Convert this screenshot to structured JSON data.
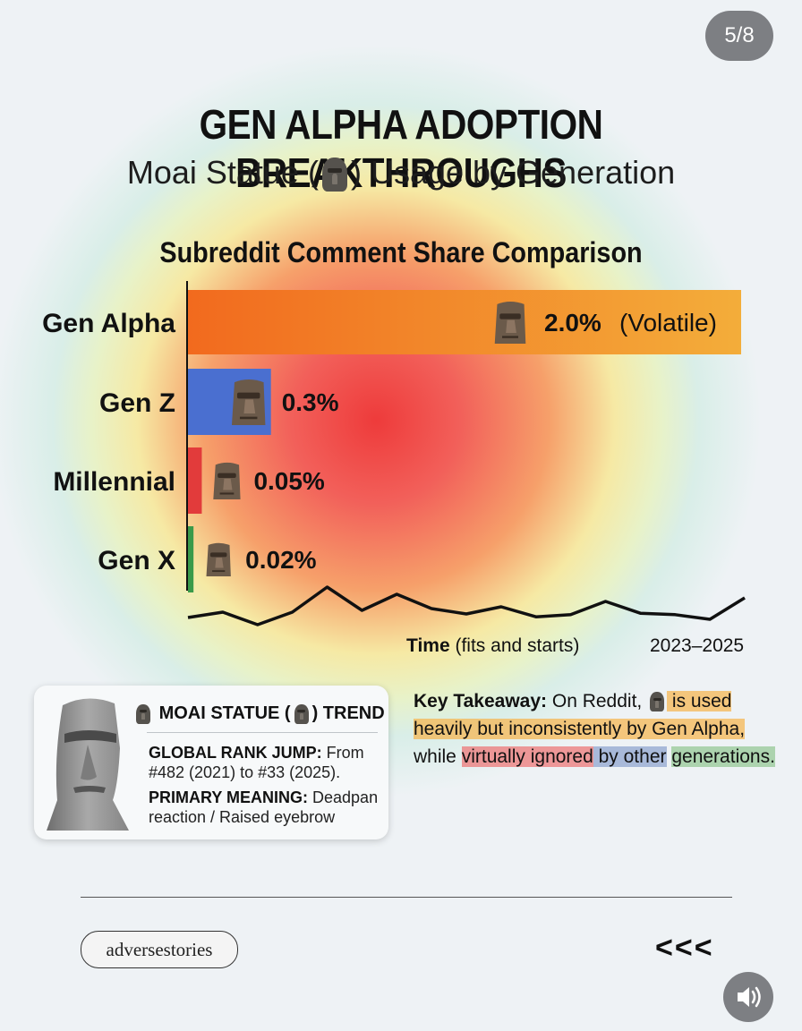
{
  "page_counter": "5/8",
  "title": "GEN ALPHA ADOPTION BREAKTHROUGHS",
  "subtitle": {
    "before": "Moai Statue (",
    "after": ") Usage by Generation"
  },
  "chart_data": {
    "type": "bar",
    "orientation": "horizontal",
    "title": "Subreddit Comment Share Comparison",
    "categories": [
      "Gen Alpha",
      "Gen Z",
      "Millennial",
      "Gen X"
    ],
    "values": [
      2.0,
      0.3,
      0.05,
      0.02
    ],
    "value_labels": [
      "2.0%",
      "0.3%",
      "0.05%",
      "0.02%"
    ],
    "value_notes": [
      "(Volatile)",
      "",
      "",
      ""
    ],
    "xlim": [
      0,
      2.0
    ],
    "colors": [
      "#f4891f",
      "#4a6fd0",
      "#e23b3b",
      "#3a9a4a"
    ],
    "trend_line": {
      "label_bold": "Time",
      "label_rest": " (fits and starts)",
      "range_label": "2023–2025",
      "values": [
        0.3,
        0.45,
        0.1,
        0.45,
        1.15,
        0.5,
        0.95,
        0.55,
        0.4,
        0.6,
        0.32,
        0.38,
        0.75,
        0.42,
        0.38,
        0.25,
        0.85
      ]
    }
  },
  "trend_card": {
    "heading_before": "MOAI STATUE (",
    "heading_after": ") TREND",
    "rank_label": "GLOBAL RANK JUMP:",
    "rank_text": " From #482 (2021) to #33 (2025).",
    "meaning_label": "PRIMARY MEANING:",
    "meaning_text": " Deadpan reaction / Raised eyebrow"
  },
  "takeaway": {
    "label": "Key Takeaway:",
    "text1": " On Reddit, ",
    "hl_orange": " is used heavily but inconsistently by Gen Alpha,",
    "text2": " while ",
    "hl_red": "virtually ignored",
    "hl_blue": " by other",
    "hl_green": "generations."
  },
  "footer": {
    "brand": "adversestories",
    "chevrons": "<<<"
  },
  "icons": {
    "moai": "moai-emoji-icon",
    "audio": "speaker-icon"
  }
}
